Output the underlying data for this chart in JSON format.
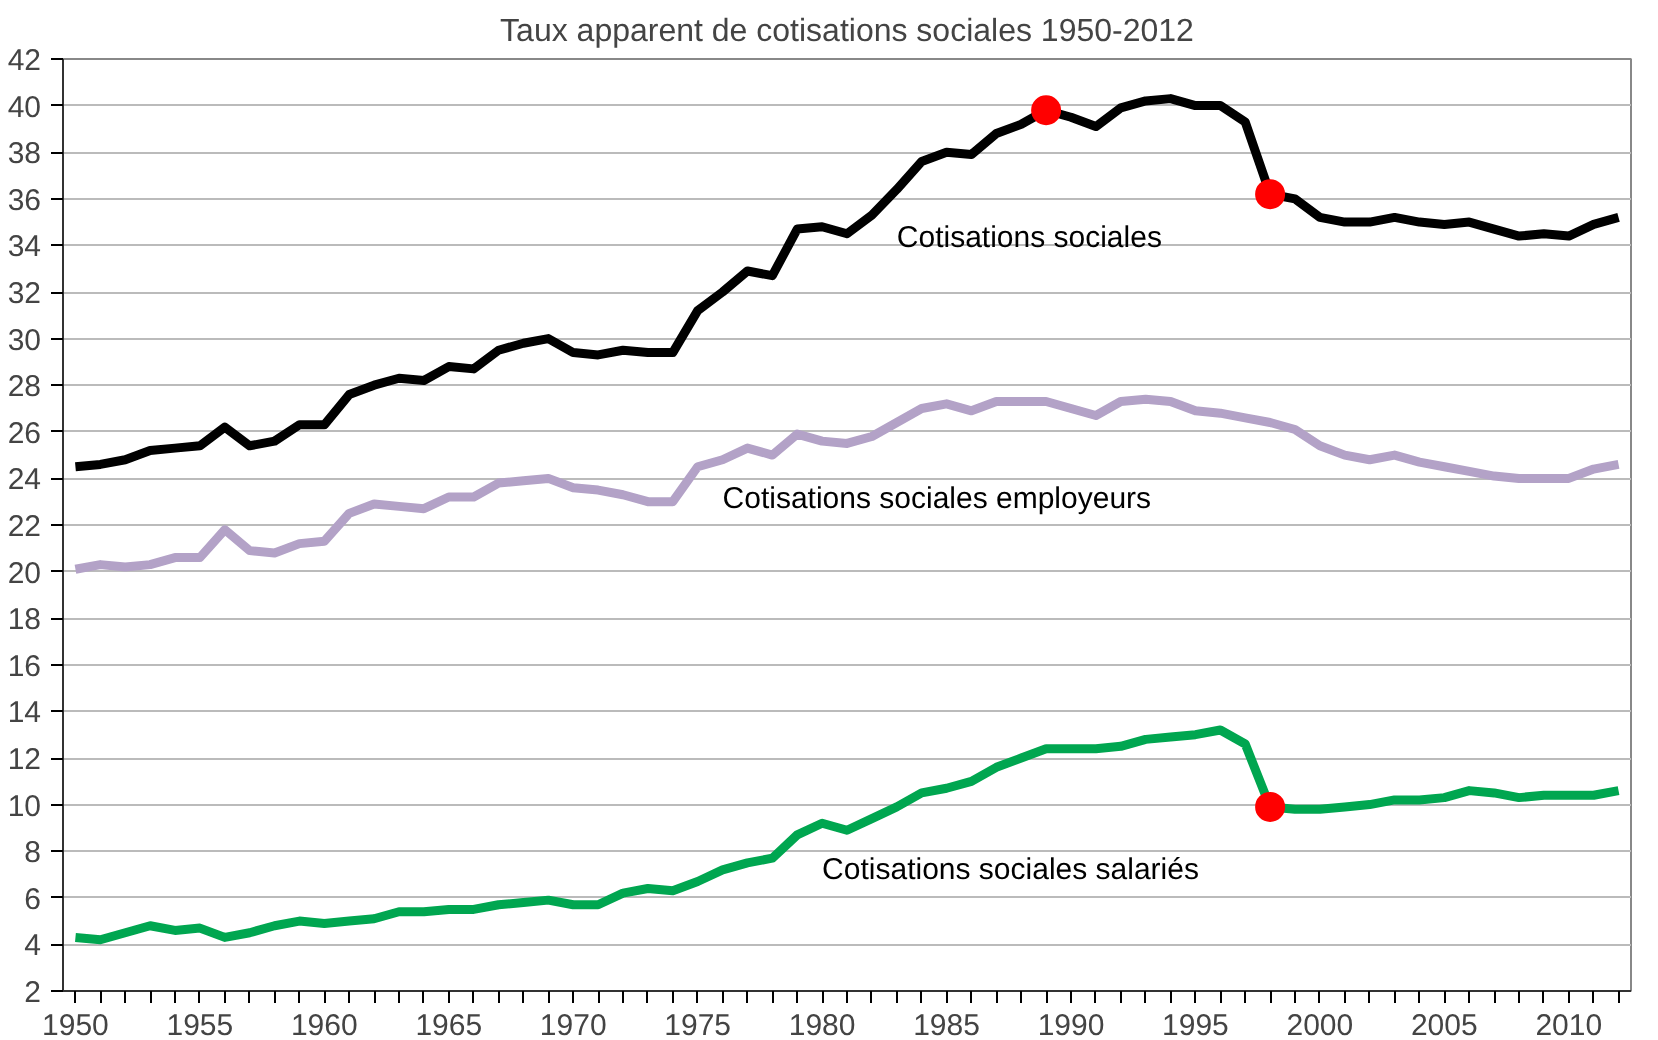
{
  "chart_data": {
    "type": "line",
    "title": "Taux apparent de cotisations sociales 1950-2012",
    "x": [
      1950,
      1951,
      1952,
      1953,
      1954,
      1955,
      1956,
      1957,
      1958,
      1959,
      1960,
      1961,
      1962,
      1963,
      1964,
      1965,
      1966,
      1967,
      1968,
      1969,
      1970,
      1971,
      1972,
      1973,
      1974,
      1975,
      1976,
      1977,
      1978,
      1979,
      1980,
      1981,
      1982,
      1983,
      1984,
      1985,
      1986,
      1987,
      1988,
      1989,
      1990,
      1991,
      1992,
      1993,
      1994,
      1995,
      1996,
      1997,
      1998,
      1999,
      2000,
      2001,
      2002,
      2003,
      2004,
      2005,
      2006,
      2007,
      2008,
      2009,
      2010,
      2011,
      2012
    ],
    "series": [
      {
        "name": "Cotisations sociales",
        "color": "#000000",
        "values": [
          24.5,
          24.6,
          24.8,
          25.2,
          25.3,
          25.4,
          26.2,
          25.4,
          25.6,
          26.3,
          26.3,
          27.6,
          28.0,
          28.3,
          28.2,
          28.8,
          28.7,
          29.5,
          29.8,
          30.0,
          29.4,
          29.3,
          29.5,
          29.4,
          29.4,
          31.2,
          32.0,
          32.9,
          32.7,
          34.7,
          34.8,
          34.5,
          35.3,
          36.4,
          37.6,
          38.0,
          37.9,
          38.8,
          39.2,
          39.8,
          39.5,
          39.1,
          39.9,
          40.2,
          40.3,
          40.0,
          40.0,
          39.3,
          36.2,
          36.0,
          35.2,
          35.0,
          35.0,
          35.2,
          35.0,
          34.9,
          35.0,
          34.7,
          34.4,
          34.5,
          34.4,
          34.9,
          35.2
        ]
      },
      {
        "name": "Cotisations sociales employeurs",
        "color": "#b3a2c7",
        "values": [
          20.1,
          20.3,
          20.2,
          20.3,
          20.6,
          20.6,
          21.8,
          20.9,
          20.8,
          21.2,
          21.3,
          22.5,
          22.9,
          22.8,
          22.7,
          23.2,
          23.2,
          23.8,
          23.9,
          24.0,
          23.6,
          23.5,
          23.3,
          23.0,
          23.0,
          24.5,
          24.8,
          25.3,
          25.0,
          25.9,
          25.6,
          25.5,
          25.8,
          26.4,
          27.0,
          27.2,
          26.9,
          27.3,
          27.3,
          27.3,
          27.0,
          26.7,
          27.3,
          27.4,
          27.3,
          26.9,
          26.8,
          26.6,
          26.4,
          26.1,
          25.4,
          25.0,
          24.8,
          25.0,
          24.7,
          24.5,
          24.3,
          24.1,
          24.0,
          24.0,
          24.0,
          24.4,
          24.6
        ]
      },
      {
        "name": "Cotisations sociales salariés",
        "color": "#00a650",
        "values": [
          4.3,
          4.2,
          4.5,
          4.8,
          4.6,
          4.7,
          4.3,
          4.5,
          4.8,
          5.0,
          4.9,
          5.0,
          5.1,
          5.4,
          5.4,
          5.5,
          5.5,
          5.7,
          5.8,
          5.9,
          5.7,
          5.7,
          6.2,
          6.4,
          6.3,
          6.7,
          7.2,
          7.5,
          7.7,
          8.7,
          9.2,
          8.9,
          9.4,
          9.9,
          10.5,
          10.7,
          11.0,
          11.6,
          12.0,
          12.4,
          12.4,
          12.4,
          12.5,
          12.8,
          12.9,
          13.0,
          13.2,
          12.6,
          9.9,
          9.8,
          9.8,
          9.9,
          10.0,
          10.2,
          10.2,
          10.3,
          10.6,
          10.5,
          10.3,
          10.4,
          10.4,
          10.4,
          10.6
        ]
      },
      {
        "type": "scatter",
        "color": "#ff0000",
        "values": [
          null,
          null,
          null,
          null,
          null,
          null,
          null,
          null,
          null,
          null,
          null,
          null,
          null,
          null,
          null,
          null,
          null,
          null,
          null,
          null,
          null,
          null,
          null,
          null,
          null,
          null,
          null,
          null,
          null,
          null,
          null,
          null,
          null,
          null,
          null,
          null,
          null,
          null,
          null,
          39.8,
          null,
          null,
          null,
          null,
          null,
          null,
          null,
          null,
          36.2,
          null,
          null,
          null,
          null,
          null,
          null,
          null,
          null,
          null,
          null,
          null,
          null,
          null,
          null
        ]
      },
      {
        "type": "scatter",
        "color": "#ff0000",
        "values": [
          null,
          null,
          null,
          null,
          null,
          null,
          null,
          null,
          null,
          null,
          null,
          null,
          null,
          null,
          null,
          null,
          null,
          null,
          null,
          null,
          null,
          null,
          null,
          null,
          null,
          null,
          null,
          null,
          null,
          null,
          null,
          null,
          null,
          null,
          null,
          null,
          null,
          null,
          null,
          null,
          null,
          null,
          null,
          null,
          null,
          null,
          null,
          null,
          9.9,
          null,
          null,
          null,
          null,
          null,
          null,
          null,
          null,
          null,
          null,
          null,
          null,
          null,
          null
        ]
      }
    ],
    "xlim": [
      1949.5,
      2012.5
    ],
    "xticks": [
      1950,
      {
        "value": 1951,
        "label": null
      },
      {
        "value": 1952,
        "label": null
      },
      {
        "value": 1953,
        "label": null
      },
      {
        "value": 1954,
        "label": null
      },
      1955,
      {
        "value": 1956,
        "label": null
      },
      {
        "value": 1957,
        "label": null
      },
      {
        "value": 1958,
        "label": null
      },
      {
        "value": 1959,
        "label": null
      },
      1960,
      {
        "value": 1961,
        "label": null
      },
      {
        "value": 1962,
        "label": null
      },
      {
        "value": 1963,
        "label": null
      },
      {
        "value": 1964,
        "label": null
      },
      1965,
      {
        "value": 1966,
        "label": null
      },
      {
        "value": 1967,
        "label": null
      },
      {
        "value": 1968,
        "label": null
      },
      {
        "value": 1969,
        "label": null
      },
      1970,
      {
        "value": 1971,
        "label": null
      },
      {
        "value": 1972,
        "label": null
      },
      {
        "value": 1973,
        "label": null
      },
      {
        "value": 1974,
        "label": null
      },
      1975,
      {
        "value": 1976,
        "label": null
      },
      {
        "value": 1977,
        "label": null
      },
      {
        "value": 1978,
        "label": null
      },
      {
        "value": 1979,
        "label": null
      },
      1980,
      {
        "value": 1981,
        "label": null
      },
      {
        "value": 1982,
        "label": null
      },
      {
        "value": 1983,
        "label": null
      },
      {
        "value": 1984,
        "label": null
      },
      1985,
      {
        "value": 1986,
        "label": null
      },
      {
        "value": 1987,
        "label": null
      },
      {
        "value": 1988,
        "label": null
      },
      {
        "value": 1989,
        "label": null
      },
      1990,
      {
        "value": 1991,
        "label": null
      },
      {
        "value": 1992,
        "label": null
      },
      {
        "value": 1993,
        "label": null
      },
      {
        "value": 1994,
        "label": null
      },
      1995,
      {
        "value": 1996,
        "label": null
      },
      {
        "value": 1997,
        "label": null
      },
      {
        "value": 1998,
        "label": null
      },
      {
        "value": 1999,
        "label": null
      },
      2000,
      {
        "value": 2001,
        "label": null
      },
      {
        "value": 2002,
        "label": null
      },
      {
        "value": 2003,
        "label": null
      },
      {
        "value": 2004,
        "label": null
      },
      2005,
      {
        "value": 2006,
        "label": null
      },
      {
        "value": 2007,
        "label": null
      },
      {
        "value": 2008,
        "label": null
      },
      {
        "value": 2009,
        "label": null
      },
      2010,
      {
        "value": 2011,
        "label": null
      },
      {
        "value": 2012,
        "label": null
      }
    ],
    "ylim": [
      2,
      42
    ],
    "yticks": [
      2,
      4,
      6,
      8,
      10,
      12,
      14,
      16,
      18,
      20,
      22,
      24,
      26,
      28,
      30,
      32,
      34,
      36,
      38,
      40,
      42
    ],
    "grid": "y"
  }
}
